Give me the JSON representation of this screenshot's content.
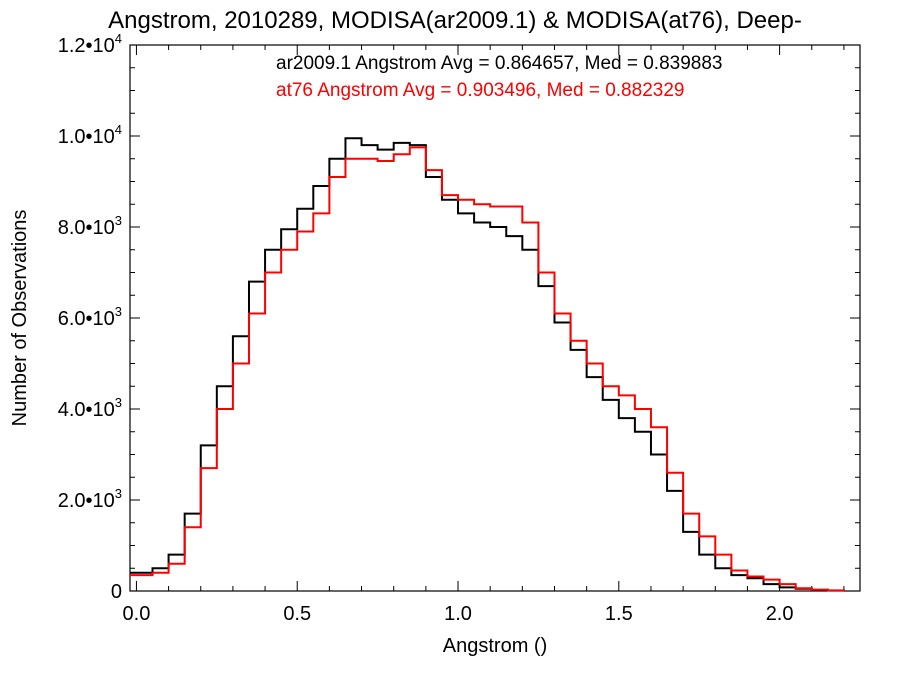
{
  "chart_data": {
    "type": "line",
    "title": "Angstrom, 2010289, MODISA(ar2009.1) & MODISA(at76), Deep-",
    "xlabel": "Angstrom ()",
    "ylabel": "Number of Observations",
    "xlim": [
      -0.02,
      2.25
    ],
    "ylim": [
      0,
      12000
    ],
    "x_ticks": [
      {
        "value": 0.0,
        "label": "0.0"
      },
      {
        "value": 0.5,
        "label": "0.5"
      },
      {
        "value": 1.0,
        "label": "1.0"
      },
      {
        "value": 1.5,
        "label": "1.5"
      },
      {
        "value": 2.0,
        "label": "2.0"
      }
    ],
    "y_ticks": [
      {
        "value": 0,
        "mantissa": "0",
        "exponent": ""
      },
      {
        "value": 2000,
        "mantissa": "2.0•10",
        "exponent": "3"
      },
      {
        "value": 4000,
        "mantissa": "4.0•10",
        "exponent": "3"
      },
      {
        "value": 6000,
        "mantissa": "6.0•10",
        "exponent": "3"
      },
      {
        "value": 8000,
        "mantissa": "8.0•10",
        "exponent": "3"
      },
      {
        "value": 10000,
        "mantissa": "1.0•10",
        "exponent": "4"
      },
      {
        "value": 12000,
        "mantissa": "1.2•10",
        "exponent": "4"
      }
    ],
    "grid": false,
    "annotations": [
      {
        "text": "ar2009.1 Angstrom Avg = 0.864657, Med = 0.839883",
        "color": "#000000"
      },
      {
        "text": "at76 Angstrom Avg = 0.903496, Med = 0.882329",
        "color": "#ff0000"
      }
    ],
    "series": [
      {
        "color": "#000000",
        "step": true,
        "x": [
          -0.02,
          0.0,
          0.05,
          0.1,
          0.15,
          0.2,
          0.25,
          0.3,
          0.35,
          0.4,
          0.45,
          0.5,
          0.55,
          0.6,
          0.65,
          0.7,
          0.75,
          0.8,
          0.85,
          0.9,
          0.95,
          1.0,
          1.05,
          1.1,
          1.15,
          1.2,
          1.25,
          1.3,
          1.35,
          1.4,
          1.45,
          1.5,
          1.55,
          1.6,
          1.65,
          1.7,
          1.75,
          1.8,
          1.85,
          1.9,
          1.95,
          2.0,
          2.05,
          2.1,
          2.15,
          2.2
        ],
        "values": [
          400,
          400,
          500,
          800,
          1700,
          3200,
          4500,
          5600,
          6800,
          7500,
          7950,
          8400,
          8900,
          9500,
          9950,
          9800,
          9700,
          9850,
          9800,
          9100,
          8600,
          8300,
          8100,
          8000,
          7800,
          7500,
          6700,
          5900,
          5300,
          4700,
          4200,
          3800,
          3500,
          3000,
          2200,
          1300,
          800,
          500,
          350,
          280,
          150,
          80,
          50,
          20,
          10,
          0
        ]
      },
      {
        "color": "#ff0000",
        "step": true,
        "x": [
          -0.02,
          0.0,
          0.05,
          0.1,
          0.15,
          0.2,
          0.25,
          0.3,
          0.35,
          0.4,
          0.45,
          0.5,
          0.55,
          0.6,
          0.65,
          0.7,
          0.75,
          0.8,
          0.85,
          0.9,
          0.95,
          1.0,
          1.05,
          1.1,
          1.15,
          1.2,
          1.25,
          1.3,
          1.35,
          1.4,
          1.45,
          1.5,
          1.55,
          1.6,
          1.65,
          1.7,
          1.75,
          1.8,
          1.85,
          1.9,
          1.95,
          2.0,
          2.05,
          2.1,
          2.15,
          2.2
        ],
        "values": [
          350,
          350,
          400,
          600,
          1400,
          2700,
          4000,
          5000,
          6100,
          7000,
          7500,
          7900,
          8300,
          9100,
          9500,
          9500,
          9450,
          9600,
          9750,
          9250,
          8700,
          8600,
          8500,
          8450,
          8450,
          8100,
          7000,
          6100,
          5500,
          5000,
          4500,
          4300,
          4000,
          3600,
          2600,
          1700,
          1200,
          800,
          450,
          320,
          250,
          150,
          60,
          30,
          15,
          0
        ]
      }
    ]
  }
}
